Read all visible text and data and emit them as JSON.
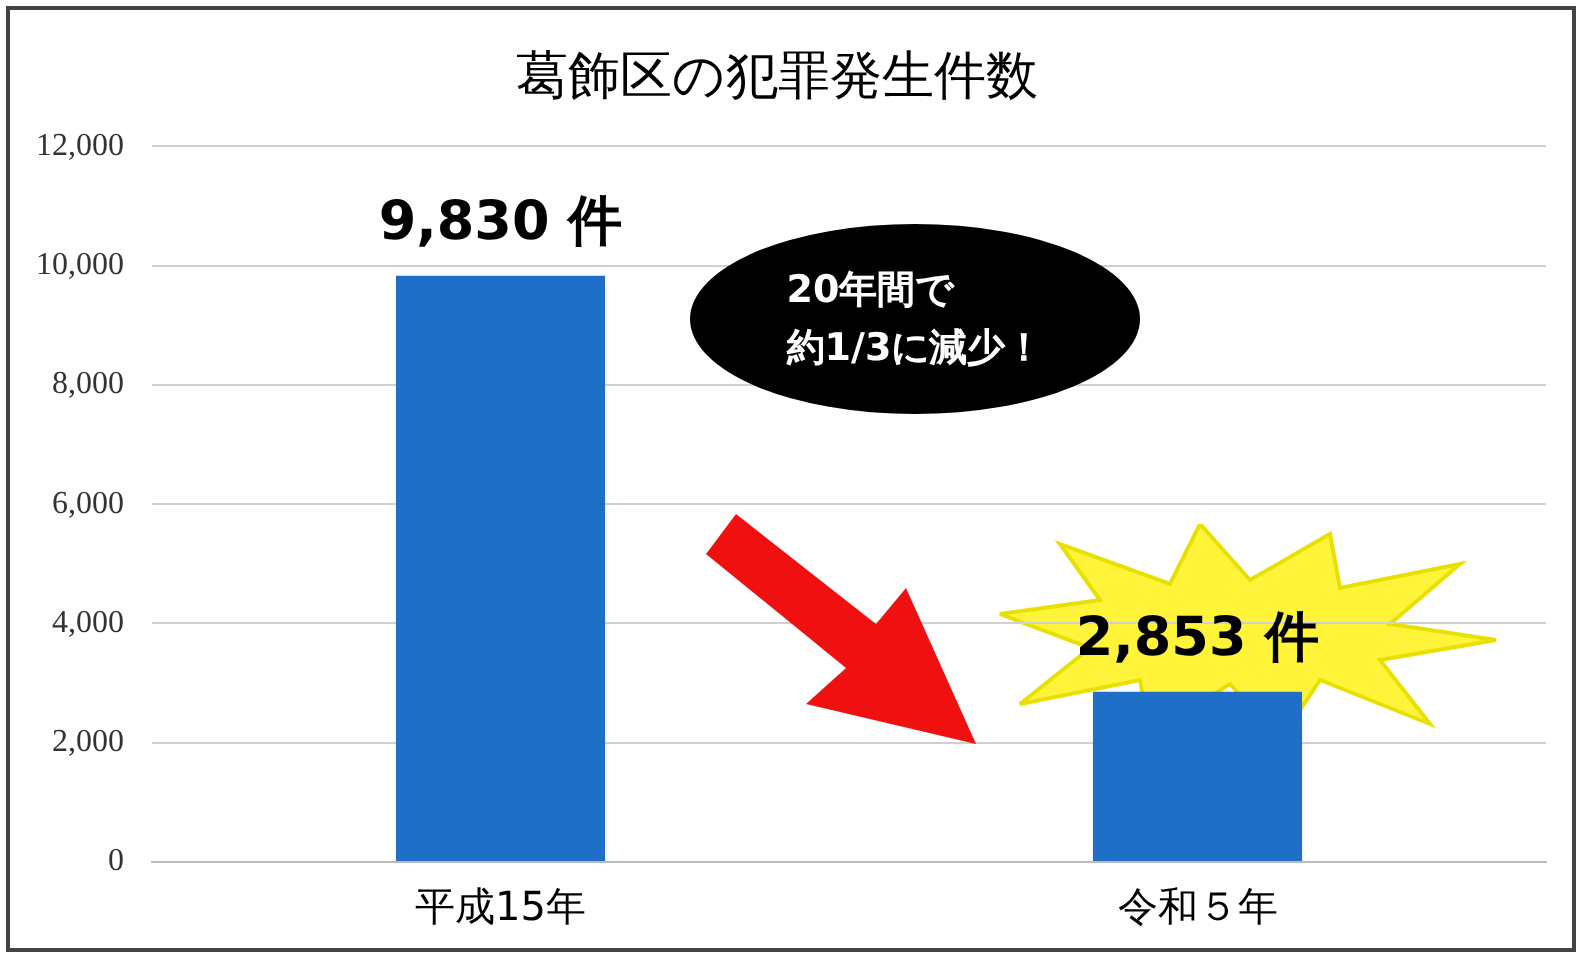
{
  "chart_data": {
    "type": "bar",
    "title": "葛飾区の犯罪発生件数",
    "categories": [
      "平成15年",
      "令和５年"
    ],
    "values": [
      9830,
      2853
    ],
    "value_labels": [
      "9,830 件",
      "2,853 件"
    ],
    "color": "#1f6fc8",
    "ylim": [
      0,
      12000
    ],
    "yticks": [
      0,
      {
        "value": 2000,
        "label": "2,000"
      },
      {
        "value": 4000,
        "label": "4,000"
      },
      {
        "value": 6000,
        "label": "6,000"
      },
      {
        "value": 8000,
        "label": "8,000"
      },
      {
        "value": 10000,
        "label": "10,000"
      },
      {
        "value": 12000,
        "label": "12,000"
      }
    ],
    "grid": "y",
    "legend": false,
    "annotations": [
      "20年間で",
      "約1/3に減少！"
    ]
  }
}
